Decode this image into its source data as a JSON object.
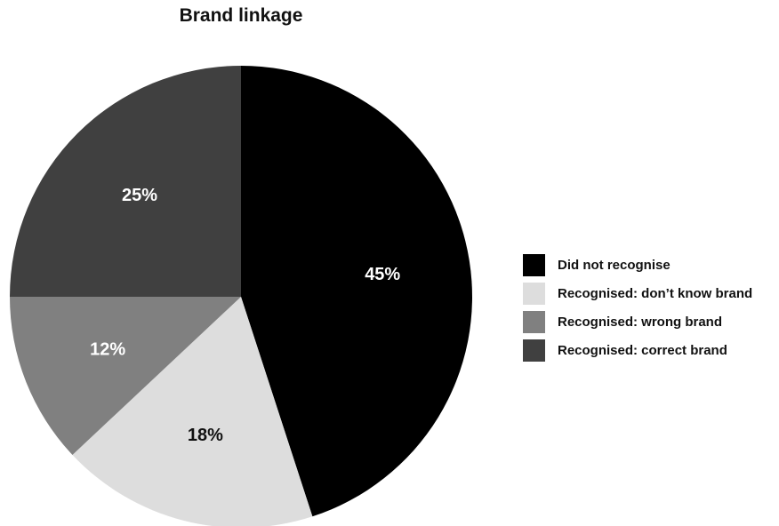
{
  "chart_data": {
    "type": "pie",
    "title": "Brand linkage",
    "slices": [
      {
        "name": "Did not recognise",
        "value": 45,
        "label": "45%",
        "color": "#000000",
        "label_color": "#ffffff"
      },
      {
        "name": "Recognised: don’t know brand",
        "value": 18,
        "label": "18%",
        "color": "#dddddd",
        "label_color": "#111111"
      },
      {
        "name": "Recognised: wrong brand",
        "value": 12,
        "label": "12%",
        "color": "#808080",
        "label_color": "#ffffff"
      },
      {
        "name": "Recognised: correct brand",
        "value": 25,
        "label": "25%",
        "color": "#404040",
        "label_color": "#ffffff"
      }
    ],
    "legend_position": "right"
  }
}
